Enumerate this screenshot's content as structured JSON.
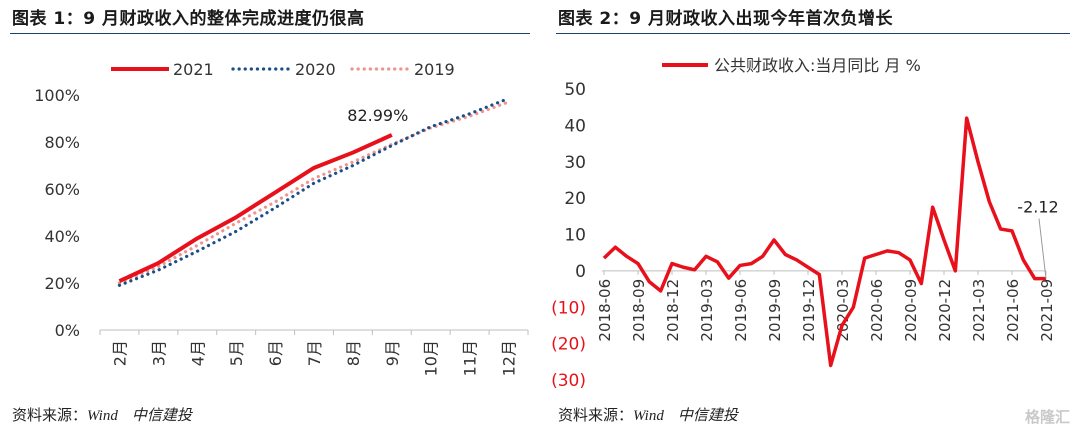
{
  "left_panel": {
    "title": "图表 1：9 月财政收入的整体完成进度仍很高",
    "source_prefix": "资料来源：",
    "source_name": "Wind",
    "source_org": "中信建投"
  },
  "right_panel": {
    "title": "图表 2：9 月财政收入出现今年首次负增长",
    "source_prefix": "资料来源：",
    "source_name": "Wind",
    "source_org": "中信建投"
  },
  "watermark": "格隆汇",
  "colors": {
    "red": "#e8111b",
    "navy_dots": "#1b4f8a",
    "pink_dots": "#f0928d",
    "axis": "#bfbfbf",
    "rule": "#1f3f6b",
    "negative_label": "#e8111b"
  },
  "chart_data": [
    {
      "type": "line",
      "categories": [
        "2月",
        "3月",
        "4月",
        "5月",
        "6月",
        "7月",
        "8月",
        "9月",
        "10月",
        "11月",
        "12月"
      ],
      "series": [
        {
          "name": "2021",
          "style": "solid",
          "color": "#e8111b",
          "values": [
            20.8,
            28.5,
            39.0,
            48.0,
            58.5,
            69.0,
            75.5,
            82.99,
            null,
            null,
            null
          ]
        },
        {
          "name": "2020",
          "style": "dotted",
          "color": "#1b4f8a",
          "values": [
            19.0,
            25.5,
            33.5,
            42.0,
            52.0,
            62.5,
            70.0,
            78.5,
            86.5,
            92.0,
            98.5
          ]
        },
        {
          "name": "2019",
          "style": "dotted",
          "color": "#f0928d",
          "values": [
            20.0,
            27.0,
            36.0,
            45.5,
            54.5,
            64.5,
            71.5,
            79.0,
            86.0,
            91.0,
            97.0
          ]
        }
      ],
      "ylim": [
        0,
        100
      ],
      "yticks": [
        "0%",
        "20%",
        "40%",
        "60%",
        "80%",
        "100%"
      ],
      "annotation": "82.99%",
      "legend_position": "top",
      "grid": false
    },
    {
      "type": "line",
      "x": [
        "2018-06",
        "2018-07",
        "2018-08",
        "2018-09",
        "2018-10",
        "2018-11",
        "2018-12",
        "2019-01",
        "2019-02",
        "2019-03",
        "2019-04",
        "2019-05",
        "2019-06",
        "2019-07",
        "2019-08",
        "2019-09",
        "2019-10",
        "2019-11",
        "2019-12",
        "2020-01",
        "2020-02",
        "2020-03",
        "2020-04",
        "2020-05",
        "2020-06",
        "2020-07",
        "2020-08",
        "2020-09",
        "2020-10",
        "2020-11",
        "2020-12",
        "2021-01",
        "2021-02",
        "2021-03",
        "2021-04",
        "2021-05",
        "2021-06",
        "2021-07",
        "2021-08",
        "2021-09"
      ],
      "tick_labels": [
        "2018-06",
        "2018-09",
        "2018-12",
        "2019-03",
        "2019-06",
        "2019-09",
        "2019-12",
        "2020-03",
        "2020-06",
        "2020-09",
        "2020-12",
        "2021-03",
        "2021-06",
        "2021-09"
      ],
      "series": [
        {
          "name": "公共财政收入:当月同比  月  %",
          "color": "#e8111b",
          "values": [
            3.5,
            6.5,
            4.0,
            2.0,
            -3.0,
            -5.5,
            2.0,
            1.0,
            0.3,
            4.0,
            2.5,
            -2.0,
            1.5,
            2.0,
            4.0,
            8.5,
            4.5,
            3.0,
            1.0,
            -1.0,
            -26.0,
            -15.0,
            -10.0,
            3.5,
            4.5,
            5.5,
            5.0,
            3.0,
            -3.5,
            17.5,
            8.5,
            0.0,
            42.0,
            30.0,
            19.0,
            11.5,
            11.0,
            3.0,
            -2.12,
            -2.12
          ]
        }
      ],
      "ylim": [
        -30,
        50
      ],
      "yticks": [
        "(30)",
        "(20)",
        "(10)",
        "0",
        "10",
        "20",
        "30",
        "40",
        "50"
      ],
      "annotation": "-2.12",
      "legend_position": "top",
      "grid": false
    }
  ]
}
